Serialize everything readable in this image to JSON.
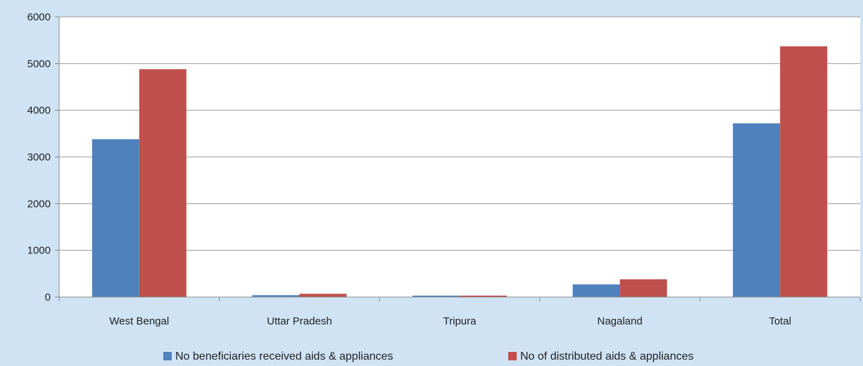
{
  "chart_data": {
    "type": "bar",
    "title": "",
    "xlabel": "",
    "ylabel": "",
    "categories": [
      "West Bengal",
      "Uttar Pradesh",
      "Tripura",
      "Nagaland",
      "Total"
    ],
    "series": [
      {
        "name": "No beneficiaries received aids & appliances",
        "color": "#4f81bd",
        "values": [
          3380,
          40,
          30,
          270,
          3720
        ]
      },
      {
        "name": "No of distributed aids & appliances",
        "color": "#c0504d",
        "values": [
          4880,
          70,
          30,
          380,
          5370
        ]
      }
    ],
    "ylim": [
      0,
      6000
    ],
    "yticks": [
      0,
      1000,
      2000,
      3000,
      4000,
      5000,
      6000
    ],
    "grid": true,
    "legend": "bottom"
  }
}
